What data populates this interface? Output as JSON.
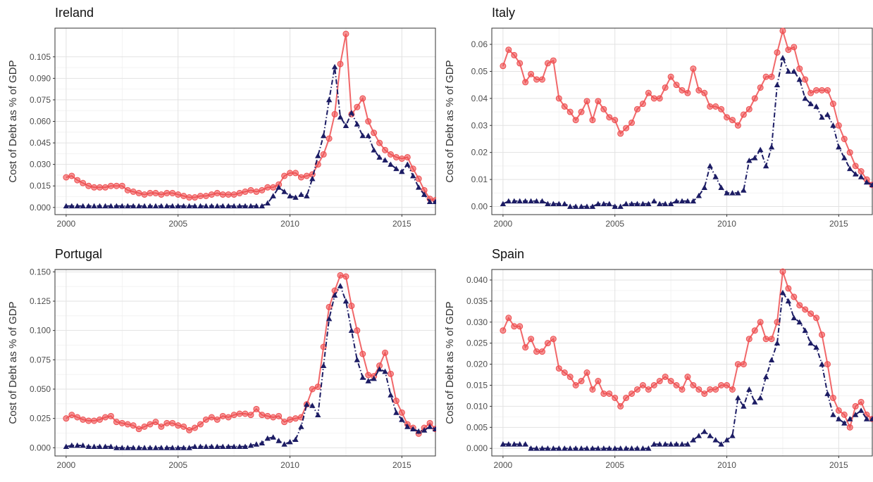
{
  "chart_data": [
    {
      "type": "line",
      "title": "Ireland",
      "ylabel": "Cost of Debt as % of GDP",
      "xlim": [
        1999.5,
        2016.5
      ],
      "ylim": [
        -0.005,
        0.125
      ],
      "xticks": [
        2000,
        2005,
        2010,
        2015
      ],
      "xtick_labels": [
        "2000",
        "2005",
        "2010",
        "2015"
      ],
      "yticks": [
        0.0,
        0.015,
        0.03,
        0.045,
        0.06,
        0.075,
        0.09,
        0.105
      ],
      "ytick_labels": [
        "0.000",
        "0.015",
        "0.030",
        "0.045",
        "0.060",
        "0.075",
        "0.090",
        "0.105"
      ],
      "grid": true,
      "colors": {
        "series_a": "#ee4e50",
        "series_b": "#1c1c64"
      },
      "series": [
        {
          "x_start": 2000,
          "step": 0.25,
          "values": [
            0.021,
            0.022,
            0.019,
            0.017,
            0.015,
            0.014,
            0.014,
            0.014,
            0.015,
            0.015,
            0.015,
            0.012,
            0.011,
            0.01,
            0.009,
            0.01,
            0.01,
            0.009,
            0.01,
            0.01,
            0.009,
            0.008,
            0.007,
            0.007,
            0.008,
            0.008,
            0.009,
            0.01,
            0.009,
            0.009,
            0.009,
            0.01,
            0.011,
            0.012,
            0.011,
            0.012,
            0.014,
            0.014,
            0.016,
            0.022,
            0.024,
            0.024,
            0.021,
            0.022,
            0.023,
            0.03,
            0.037,
            0.048,
            0.065,
            0.1,
            0.121,
            0.065,
            0.07,
            0.076,
            0.06,
            0.052,
            0.045,
            0.04,
            0.037,
            0.035,
            0.034,
            0.035,
            0.027,
            0.02,
            0.012,
            0.006,
            0.005,
            0.002,
            0.003,
            0.005,
            0.004,
            0.002,
            0.001
          ]
        },
        {
          "x_start": 2000,
          "step": 0.25,
          "values": [
            0.001,
            0.001,
            0.001,
            0.001,
            0.001,
            0.001,
            0.001,
            0.001,
            0.001,
            0.001,
            0.001,
            0.001,
            0.001,
            0.001,
            0.001,
            0.001,
            0.001,
            0.001,
            0.001,
            0.001,
            0.001,
            0.001,
            0.001,
            0.001,
            0.001,
            0.001,
            0.001,
            0.001,
            0.001,
            0.001,
            0.001,
            0.001,
            0.001,
            0.001,
            0.001,
            0.001,
            0.003,
            0.008,
            0.014,
            0.011,
            0.008,
            0.007,
            0.009,
            0.008,
            0.02,
            0.036,
            0.05,
            0.075,
            0.098,
            0.063,
            0.057,
            0.066,
            0.058,
            0.05,
            0.05,
            0.04,
            0.035,
            0.033,
            0.03,
            0.027,
            0.025,
            0.03,
            0.022,
            0.014,
            0.009,
            0.004,
            0.004,
            0.003,
            0.004,
            0.004,
            0.003,
            0.002,
            0.001
          ]
        }
      ]
    },
    {
      "type": "line",
      "title": "Italy",
      "ylabel": "Cost of Debt as % of GDP",
      "xlim": [
        1999.5,
        2016.5
      ],
      "ylim": [
        -0.003,
        0.066
      ],
      "xticks": [
        2000,
        2005,
        2010,
        2015
      ],
      "xtick_labels": [
        "2000",
        "2005",
        "2010",
        "2015"
      ],
      "yticks": [
        0.0,
        0.01,
        0.02,
        0.03,
        0.04,
        0.05,
        0.06
      ],
      "ytick_labels": [
        "0.00",
        "0.01",
        "0.02",
        "0.03",
        "0.04",
        "0.05",
        "0.06"
      ],
      "grid": true,
      "colors": {
        "series_a": "#ee4e50",
        "series_b": "#1c1c64"
      },
      "series": [
        {
          "x_start": 2000,
          "step": 0.25,
          "values": [
            0.052,
            0.058,
            0.056,
            0.053,
            0.046,
            0.049,
            0.047,
            0.047,
            0.053,
            0.054,
            0.04,
            0.037,
            0.035,
            0.032,
            0.035,
            0.039,
            0.032,
            0.039,
            0.036,
            0.033,
            0.032,
            0.027,
            0.029,
            0.031,
            0.036,
            0.038,
            0.042,
            0.04,
            0.04,
            0.044,
            0.048,
            0.045,
            0.043,
            0.042,
            0.051,
            0.043,
            0.042,
            0.037,
            0.037,
            0.036,
            0.033,
            0.032,
            0.03,
            0.034,
            0.036,
            0.04,
            0.044,
            0.048,
            0.048,
            0.057,
            0.065,
            0.058,
            0.059,
            0.051,
            0.047,
            0.042,
            0.043,
            0.043,
            0.043,
            0.038,
            0.03,
            0.025,
            0.02,
            0.015,
            0.013,
            0.01,
            0.008,
            0.012,
            0.017,
            0.01,
            0.008
          ]
        },
        {
          "x_start": 2000,
          "step": 0.25,
          "values": [
            0.001,
            0.002,
            0.002,
            0.002,
            0.002,
            0.002,
            0.002,
            0.002,
            0.001,
            0.001,
            0.001,
            0.001,
            0.0,
            0.0,
            0.0,
            0.0,
            0.0,
            0.001,
            0.001,
            0.001,
            0.0,
            0.0,
            0.001,
            0.001,
            0.001,
            0.001,
            0.001,
            0.002,
            0.001,
            0.001,
            0.001,
            0.002,
            0.002,
            0.002,
            0.002,
            0.004,
            0.007,
            0.015,
            0.011,
            0.007,
            0.005,
            0.005,
            0.005,
            0.006,
            0.017,
            0.018,
            0.021,
            0.015,
            0.022,
            0.045,
            0.055,
            0.05,
            0.05,
            0.047,
            0.04,
            0.038,
            0.037,
            0.033,
            0.034,
            0.03,
            0.022,
            0.018,
            0.014,
            0.012,
            0.011,
            0.009,
            0.008,
            0.011,
            0.01,
            0.009,
            0.008
          ]
        }
      ]
    },
    {
      "type": "line",
      "title": "Portugal",
      "ylabel": "Cost of Debt as % of GDP",
      "xlim": [
        1999.5,
        2016.5
      ],
      "ylim": [
        -0.007,
        0.152
      ],
      "xticks": [
        2000,
        2005,
        2010,
        2015
      ],
      "xtick_labels": [
        "2000",
        "2005",
        "2010",
        "2015"
      ],
      "yticks": [
        0.0,
        0.025,
        0.05,
        0.075,
        0.1,
        0.125,
        0.15
      ],
      "ytick_labels": [
        "0.000",
        "0.025",
        "0.050",
        "0.075",
        "0.100",
        "0.125",
        "0.150"
      ],
      "grid": true,
      "colors": {
        "series_a": "#ee4e50",
        "series_b": "#1c1c64"
      },
      "series": [
        {
          "x_start": 2000,
          "step": 0.25,
          "values": [
            0.025,
            0.028,
            0.026,
            0.024,
            0.023,
            0.023,
            0.024,
            0.026,
            0.027,
            0.022,
            0.021,
            0.02,
            0.019,
            0.016,
            0.018,
            0.02,
            0.022,
            0.018,
            0.021,
            0.021,
            0.019,
            0.018,
            0.015,
            0.017,
            0.02,
            0.024,
            0.026,
            0.024,
            0.027,
            0.026,
            0.028,
            0.029,
            0.029,
            0.028,
            0.033,
            0.028,
            0.027,
            0.026,
            0.027,
            0.022,
            0.024,
            0.025,
            0.026,
            0.037,
            0.05,
            0.052,
            0.086,
            0.12,
            0.134,
            0.147,
            0.146,
            0.121,
            0.1,
            0.08,
            0.062,
            0.061,
            0.07,
            0.081,
            0.063,
            0.04,
            0.03,
            0.02,
            0.017,
            0.012,
            0.017,
            0.021,
            0.016,
            0.015,
            0.013
          ]
        },
        {
          "x_start": 2000,
          "step": 0.25,
          "values": [
            0.001,
            0.002,
            0.002,
            0.002,
            0.001,
            0.001,
            0.001,
            0.001,
            0.001,
            0.0,
            0.0,
            0.0,
            0.0,
            0.0,
            0.0,
            0.0,
            0.0,
            0.0,
            0.0,
            0.0,
            0.0,
            0.0,
            0.0,
            0.001,
            0.001,
            0.001,
            0.001,
            0.001,
            0.001,
            0.001,
            0.001,
            0.001,
            0.001,
            0.002,
            0.003,
            0.004,
            0.008,
            0.009,
            0.006,
            0.003,
            0.005,
            0.007,
            0.018,
            0.037,
            0.036,
            0.028,
            0.07,
            0.11,
            0.13,
            0.138,
            0.125,
            0.1,
            0.075,
            0.06,
            0.057,
            0.059,
            0.067,
            0.065,
            0.045,
            0.03,
            0.024,
            0.018,
            0.016,
            0.014,
            0.015,
            0.018,
            0.016,
            0.014,
            0.013
          ]
        }
      ]
    },
    {
      "type": "line",
      "title": "Spain",
      "ylabel": "Cost of Debt as % of GDP",
      "xlim": [
        1999.5,
        2016.5
      ],
      "ylim": [
        -0.0018,
        0.0425
      ],
      "xticks": [
        2000,
        2005,
        2010,
        2015
      ],
      "xtick_labels": [
        "2000",
        "2005",
        "2010",
        "2015"
      ],
      "yticks": [
        0.0,
        0.005,
        0.01,
        0.015,
        0.02,
        0.025,
        0.03,
        0.035,
        0.04
      ],
      "ytick_labels": [
        "0.000",
        "0.005",
        "0.010",
        "0.015",
        "0.020",
        "0.025",
        "0.030",
        "0.035",
        "0.040"
      ],
      "grid": true,
      "colors": {
        "series_a": "#ee4e50",
        "series_b": "#1c1c64"
      },
      "series": [
        {
          "x_start": 2000,
          "step": 0.25,
          "values": [
            0.028,
            0.031,
            0.029,
            0.029,
            0.024,
            0.026,
            0.023,
            0.023,
            0.025,
            0.026,
            0.019,
            0.018,
            0.017,
            0.015,
            0.016,
            0.018,
            0.014,
            0.016,
            0.013,
            0.013,
            0.012,
            0.01,
            0.012,
            0.013,
            0.014,
            0.015,
            0.014,
            0.015,
            0.016,
            0.017,
            0.016,
            0.015,
            0.014,
            0.017,
            0.015,
            0.014,
            0.013,
            0.014,
            0.014,
            0.015,
            0.015,
            0.014,
            0.02,
            0.02,
            0.026,
            0.028,
            0.03,
            0.026,
            0.026,
            0.03,
            0.042,
            0.038,
            0.036,
            0.034,
            0.033,
            0.032,
            0.031,
            0.027,
            0.02,
            0.012,
            0.009,
            0.008,
            0.005,
            0.01,
            0.011,
            0.008,
            0.007
          ]
        },
        {
          "x_start": 2000,
          "step": 0.25,
          "values": [
            0.001,
            0.001,
            0.001,
            0.001,
            0.001,
            0.0,
            0.0,
            0.0,
            0.0,
            0.0,
            0.0,
            0.0,
            0.0,
            0.0,
            0.0,
            0.0,
            0.0,
            0.0,
            0.0,
            0.0,
            0.0,
            0.0,
            0.0,
            0.0,
            0.0,
            0.0,
            0.0,
            0.001,
            0.001,
            0.001,
            0.001,
            0.001,
            0.001,
            0.001,
            0.002,
            0.003,
            0.004,
            0.003,
            0.002,
            0.001,
            0.002,
            0.003,
            0.012,
            0.01,
            0.014,
            0.011,
            0.012,
            0.017,
            0.021,
            0.025,
            0.037,
            0.035,
            0.031,
            0.03,
            0.028,
            0.025,
            0.024,
            0.02,
            0.013,
            0.008,
            0.007,
            0.006,
            0.007,
            0.008,
            0.009,
            0.007,
            0.007
          ]
        }
      ]
    }
  ]
}
